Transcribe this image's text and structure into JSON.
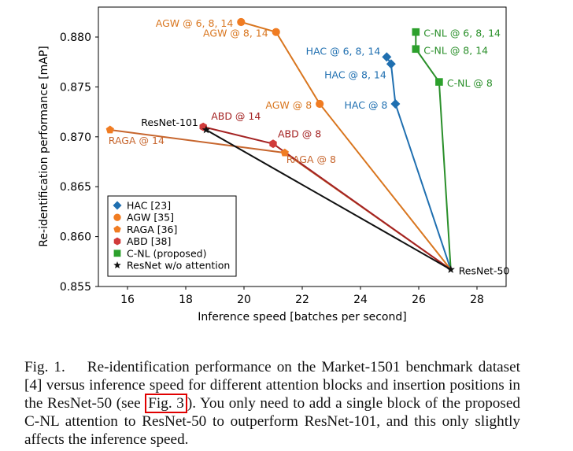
{
  "figure": {
    "caption": {
      "prefix": "Fig. 1.",
      "part1": "Re-identification performance on the Market-1501 benchmark dataset [4] versus inference speed for different attention blocks and insertion positions in the ResNet-50 (see ",
      "ref": "Fig. 3",
      "part2": "). You only need to add a single block of the proposed C-NL attention to ResNet-50 to outperform ResNet-101, and this only slightly affects the inference speed."
    }
  },
  "chart_data": {
    "type": "line",
    "xlabel": "Inference speed [batches per second]",
    "ylabel": "Re-identification performance [mAP]",
    "xlim": [
      15.0,
      29.0
    ],
    "ylim": [
      0.855,
      0.883
    ],
    "xticks": [
      16,
      18,
      20,
      22,
      24,
      26,
      28
    ],
    "yticks": [
      0.855,
      0.86,
      0.865,
      0.87,
      0.875,
      0.88
    ],
    "ytick_labels": [
      "0.855",
      "0.860",
      "0.865",
      "0.870",
      "0.875",
      "0.880"
    ],
    "legend_position": "lower-left",
    "baseline": {
      "name": "ResNet-50",
      "x": 27.1,
      "y": 0.8567
    },
    "series": [
      {
        "name": "HAC [23]",
        "color": "#1f6fb0",
        "marker": "diamond",
        "points": [
          {
            "x": 24.9,
            "y": 0.878,
            "label": "HAC @ 6, 8, 14"
          },
          {
            "x": 25.05,
            "y": 0.8773,
            "label": "HAC @ 8, 14"
          },
          {
            "x": 25.2,
            "y": 0.8733,
            "label": "HAC @ 8"
          }
        ]
      },
      {
        "name": "AGW [35]",
        "color": "#f07c22",
        "line_color": "#d9761f",
        "marker": "circle",
        "points": [
          {
            "x": 19.9,
            "y": 0.8815,
            "label": "AGW @ 6, 8, 14"
          },
          {
            "x": 21.1,
            "y": 0.8805,
            "label": "AGW @ 8, 14"
          },
          {
            "x": 22.6,
            "y": 0.8733,
            "label": "AGW @ 8"
          }
        ]
      },
      {
        "name": "RAGA [36]",
        "color": "#f07c22",
        "line_color": "#c7662e",
        "marker": "pentagon",
        "points": [
          {
            "x": 15.4,
            "y": 0.8707,
            "label": "RAGA @ 14"
          },
          {
            "x": 21.4,
            "y": 0.8684,
            "label": "RAGA @ 8"
          }
        ]
      },
      {
        "name": "ABD [38]",
        "color": "#d13b3b",
        "line_color": "#a42323",
        "marker": "hexagon",
        "points": [
          {
            "x": 18.6,
            "y": 0.871,
            "label": "ABD @ 14"
          },
          {
            "x": 21.0,
            "y": 0.8693,
            "label": "ABD @ 8"
          }
        ]
      },
      {
        "name": "C-NL (proposed)",
        "color": "#2ca02c",
        "line_color": "#2a8f2a",
        "marker": "square",
        "points": [
          {
            "x": 25.9,
            "y": 0.8805,
            "label": "C-NL @ 6, 8, 14"
          },
          {
            "x": 25.9,
            "y": 0.8788,
            "label": "C-NL @ 8, 14"
          },
          {
            "x": 26.7,
            "y": 0.8755,
            "label": "C-NL @ 8"
          }
        ]
      },
      {
        "name": "ResNet w/o attention",
        "color": "#111111",
        "line_color": "#111111",
        "marker": "star",
        "points": [
          {
            "x": 18.7,
            "y": 0.8707,
            "label": "ResNet-101"
          },
          {
            "x": 27.1,
            "y": 0.8567,
            "label": "ResNet-50"
          }
        ]
      }
    ]
  }
}
